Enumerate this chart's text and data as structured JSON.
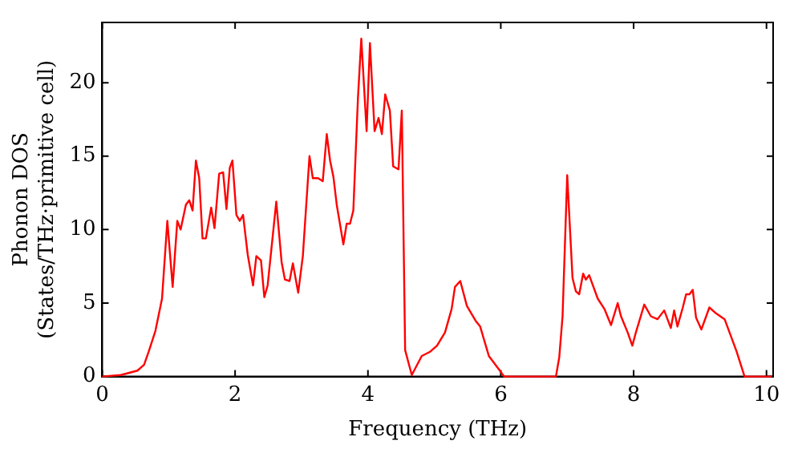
{
  "chart_data": {
    "type": "line",
    "xlabel": "Frequency (THz)",
    "ylabel": "Phonon DOS\n(States/THz·primitive cell)",
    "xlim": [
      0,
      10.1
    ],
    "ylim": [
      0,
      24.1
    ],
    "xticks": [
      0,
      2,
      4,
      6,
      8,
      10
    ],
    "yticks": [
      0,
      5,
      10,
      15,
      20
    ],
    "grid": false,
    "legend": false,
    "marker": "none",
    "line_style": "solid",
    "series": [
      {
        "color": "#ff0000",
        "x": [
          0,
          0.28,
          0.53,
          0.63,
          0.7,
          0.8,
          0.9,
          0.98,
          1.06,
          1.13,
          1.18,
          1.26,
          1.31,
          1.36,
          1.41,
          1.46,
          1.51,
          1.56,
          1.64,
          1.69,
          1.76,
          1.82,
          1.87,
          1.92,
          1.96,
          2.02,
          2.07,
          2.12,
          2.19,
          2.27,
          2.32,
          2.39,
          2.44,
          2.49,
          2.62,
          2.7,
          2.75,
          2.82,
          2.87,
          2.95,
          3.02,
          3.12,
          3.17,
          3.25,
          3.32,
          3.38,
          3.43,
          3.48,
          3.53,
          3.63,
          3.68,
          3.73,
          3.78,
          3.85,
          3.9,
          3.98,
          4.03,
          4.1,
          4.16,
          4.21,
          4.26,
          4.33,
          4.38,
          4.46,
          4.51,
          4.56,
          4.66,
          4.81,
          4.94,
          5.04,
          5.16,
          5.26,
          5.31,
          5.39,
          5.49,
          5.62,
          5.69,
          5.82,
          5.97,
          6.05,
          6.83,
          6.88,
          6.93,
          7.0,
          7.08,
          7.13,
          7.18,
          7.24,
          7.28,
          7.33,
          7.46,
          7.56,
          7.66,
          7.76,
          7.81,
          7.91,
          7.98,
          8.04,
          8.16,
          8.26,
          8.36,
          8.46,
          8.56,
          8.61,
          8.66,
          8.74,
          8.79,
          8.84,
          8.89,
          8.94,
          9.02,
          9.14,
          9.24,
          9.37,
          9.55,
          9.67,
          10.08
        ],
        "values": [
          0,
          0.1,
          0.4,
          0.8,
          1.7,
          3.1,
          5.3,
          10.6,
          6.1,
          10.6,
          10.0,
          11.7,
          12.0,
          11.3,
          14.7,
          13.5,
          9.4,
          9.4,
          11.5,
          10.1,
          13.8,
          13.9,
          11.4,
          14.2,
          14.7,
          11.0,
          10.6,
          11.0,
          8.3,
          6.2,
          8.2,
          7.9,
          5.4,
          6.2,
          11.9,
          7.8,
          6.6,
          6.5,
          7.7,
          5.7,
          8.2,
          15.0,
          13.5,
          13.5,
          13.3,
          16.5,
          14.7,
          13.6,
          11.7,
          9.0,
          10.4,
          10.4,
          11.3,
          19.0,
          23.0,
          16.7,
          22.7,
          16.7,
          17.6,
          16.5,
          19.2,
          18.1,
          14.3,
          14.1,
          18.1,
          1.8,
          0.1,
          1.4,
          1.7,
          2.1,
          3.0,
          4.6,
          6.1,
          6.5,
          4.8,
          3.8,
          3.4,
          1.4,
          0.5,
          0,
          0,
          1.3,
          4.1,
          13.7,
          6.7,
          5.8,
          5.6,
          7.0,
          6.6,
          6.9,
          5.3,
          4.6,
          3.5,
          5.0,
          4.1,
          3.0,
          2.1,
          3.1,
          4.9,
          4.1,
          3.9,
          4.5,
          3.3,
          4.5,
          3.4,
          4.7,
          5.6,
          5.6,
          5.9,
          4.0,
          3.2,
          4.7,
          4.3,
          3.9,
          1.7,
          0,
          0
        ]
      }
    ]
  }
}
